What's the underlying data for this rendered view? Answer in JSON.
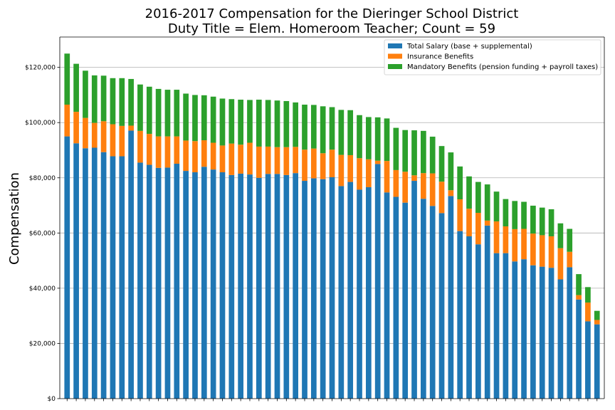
{
  "chart_data": {
    "type": "bar",
    "stacked": true,
    "title_lines": [
      "2016-2017 Compensation for the Dieringer School District",
      "Duty Title = Elem. Homeroom Teacher; Count = 59"
    ],
    "xlabel": "",
    "ylabel": "Compensation",
    "ylim": [
      0,
      131000
    ],
    "yticks": [
      0,
      20000,
      40000,
      60000,
      80000,
      100000,
      120000
    ],
    "ytick_labels": [
      "$0",
      "$20,000",
      "$40,000",
      "$60,000",
      "$80,000",
      "$100,000",
      "$120,000"
    ],
    "grid": "y",
    "legend_position": "top-right",
    "colors": {
      "salary": "#1f77b4",
      "insurance": "#ff7f0e",
      "mandatory": "#2ca02c"
    },
    "series": [
      {
        "name": "Total Salary (base + supplemental)",
        "key": "salary",
        "values": [
          95000,
          92500,
          90700,
          90900,
          89300,
          87800,
          87800,
          97100,
          85500,
          84700,
          83600,
          83700,
          85100,
          82500,
          82000,
          84000,
          83000,
          82000,
          81000,
          81500,
          81200,
          80000,
          81400,
          81400,
          81000,
          81700,
          78900,
          79800,
          79500,
          80200,
          77000,
          78500,
          75700,
          76600,
          85000,
          74700,
          73100,
          71000,
          78900,
          72400,
          69800,
          67200,
          73400,
          60700,
          58800,
          55900,
          62700,
          52700,
          52700,
          49700,
          50500,
          48300,
          47800,
          47400,
          43200,
          47600,
          35900,
          28000,
          26900
        ]
      },
      {
        "name": "Insurance Benefits",
        "key": "insurance",
        "values": [
          11500,
          11400,
          11000,
          9000,
          11200,
          11600,
          11000,
          1800,
          11500,
          11200,
          11400,
          11300,
          9900,
          11000,
          11300,
          9600,
          9700,
          9700,
          11400,
          10500,
          11500,
          11300,
          9900,
          9700,
          10100,
          9500,
          11300,
          10800,
          9400,
          10000,
          11300,
          9700,
          11400,
          10100,
          1200,
          11400,
          9700,
          11200,
          2000,
          9300,
          11800,
          11400,
          2100,
          11500,
          10000,
          11400,
          1800,
          11500,
          9700,
          11700,
          11000,
          11500,
          11400,
          11400,
          11300,
          5600,
          1600,
          6800,
          1600
        ]
      },
      {
        "name": "Mandatory Benefits (pension funding + payroll taxes)",
        "key": "mandatory",
        "values": [
          18500,
          17400,
          17100,
          17200,
          16500,
          16700,
          17300,
          16900,
          16800,
          17100,
          17200,
          16900,
          16900,
          17000,
          16700,
          16300,
          16700,
          17000,
          16100,
          16300,
          15500,
          17000,
          16900,
          16900,
          16700,
          16100,
          16300,
          15800,
          17000,
          15400,
          16300,
          16300,
          15600,
          15300,
          15700,
          15400,
          15300,
          15100,
          16300,
          15300,
          13300,
          12900,
          13700,
          11900,
          11700,
          11200,
          13100,
          10800,
          9900,
          10200,
          9800,
          10100,
          10000,
          9800,
          9000,
          8300,
          7600,
          5600,
          3300
        ]
      }
    ]
  }
}
